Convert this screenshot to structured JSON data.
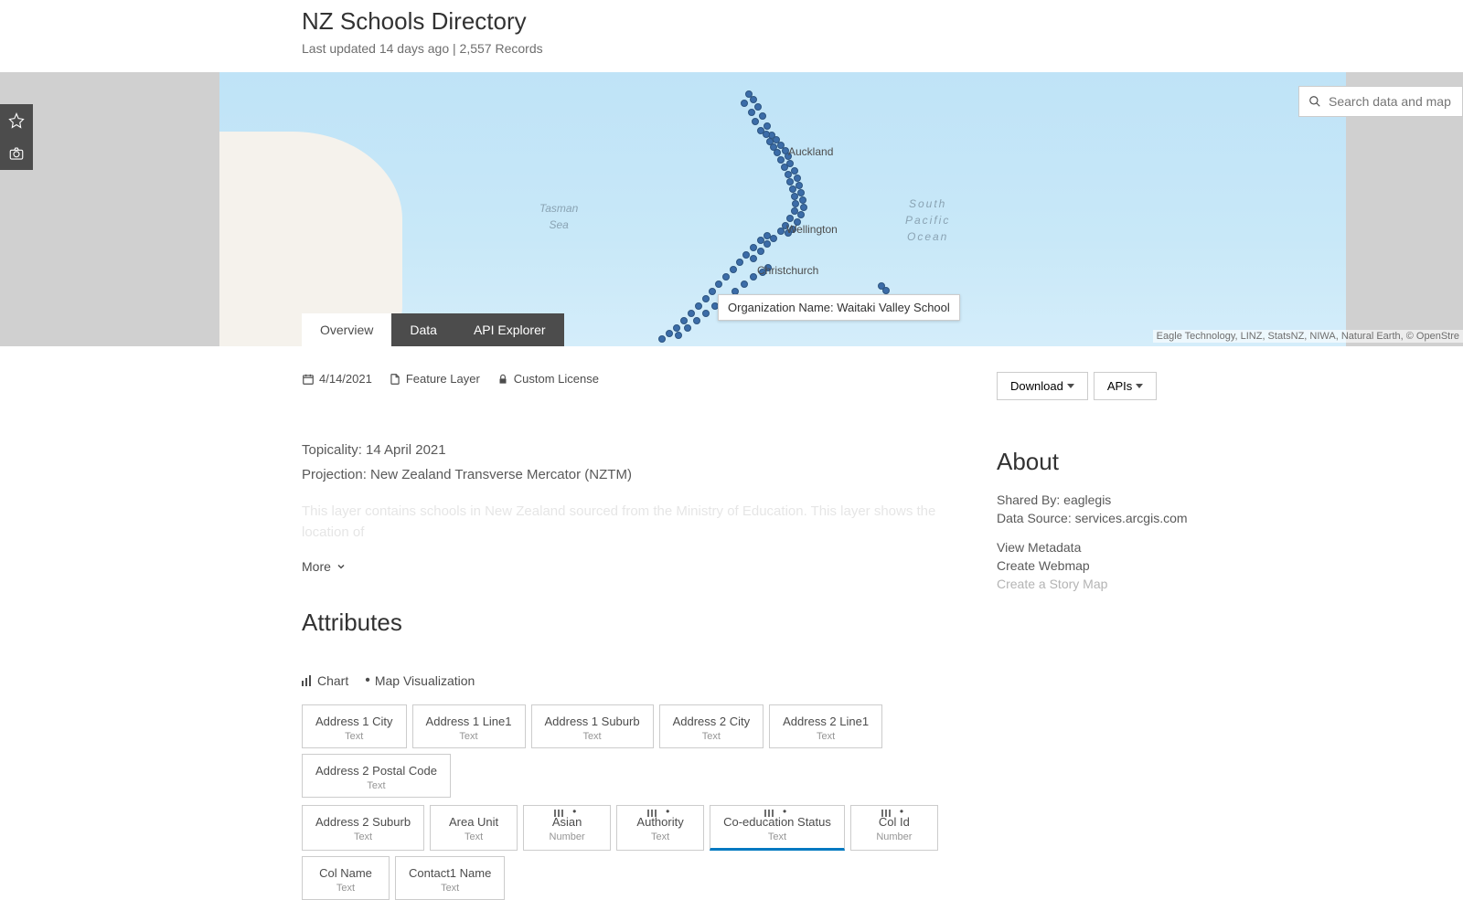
{
  "header": {
    "title": "NZ Schools Directory",
    "subtitle": "Last updated 14 days ago | 2,557 Records"
  },
  "map": {
    "search_placeholder": "Search data and map",
    "labels": {
      "tasman": "Tasman\nSea",
      "pacific": "South\nPacific\nOcean",
      "auckland": "Auckland",
      "wellington": "Wellington",
      "christchurch": "Christchurch"
    },
    "tooltip": "Organization Name: Waitaki Valley School",
    "attribution": "Eagle Technology, LINZ, StatsNZ, NIWA, Natural Earth, © OpenStre",
    "point_color": "#3b6ca8",
    "ocean_color": "#c8e8f8",
    "land_color": "#f5f2ec"
  },
  "tabs": {
    "overview": "Overview",
    "data": "Data",
    "api": "API Explorer"
  },
  "meta": {
    "date": "4/14/2021",
    "layer_type": "Feature Layer",
    "license": "Custom License"
  },
  "buttons": {
    "download": "Download",
    "apis": "APIs"
  },
  "description": {
    "topicality": "Topicality: 14 April 2021",
    "projection": "Projection: New Zealand Transverse Mercator (NZTM)",
    "more": "More"
  },
  "attributes": {
    "heading": "Attributes",
    "chart_btn": "Chart",
    "map_btn": "Map Visualization",
    "row1": [
      {
        "name": "Address 1 City",
        "type": "Text"
      },
      {
        "name": "Address 1 Line1",
        "type": "Text"
      },
      {
        "name": "Address 1 Suburb",
        "type": "Text"
      },
      {
        "name": "Address 2 City",
        "type": "Text"
      },
      {
        "name": "Address 2 Line1",
        "type": "Text"
      },
      {
        "name": "Address 2 Postal Code",
        "type": "Text"
      }
    ],
    "row2": [
      {
        "name": "Address 2 Suburb",
        "type": "Text",
        "chart": false
      },
      {
        "name": "Area Unit",
        "type": "Text",
        "chart": false
      },
      {
        "name": "Asian",
        "type": "Number",
        "chart": true
      },
      {
        "name": "Authority",
        "type": "Text",
        "chart": true
      },
      {
        "name": "Co-education Status",
        "type": "Text",
        "chart": true,
        "highlight": true
      },
      {
        "name": "Col Id",
        "type": "Number",
        "chart": true
      },
      {
        "name": "Col Name",
        "type": "Text",
        "chart": false
      },
      {
        "name": "Contact1 Name",
        "type": "Text",
        "chart": false
      }
    ]
  },
  "about": {
    "heading": "About",
    "shared_by_label": "Shared By: ",
    "shared_by_value": "eaglegis",
    "source_label": "Data Source: ",
    "source_value": "services.arcgis.com",
    "links": {
      "metadata": "View Metadata",
      "webmap": "Create Webmap",
      "storymap": "Create a Story Map"
    }
  }
}
